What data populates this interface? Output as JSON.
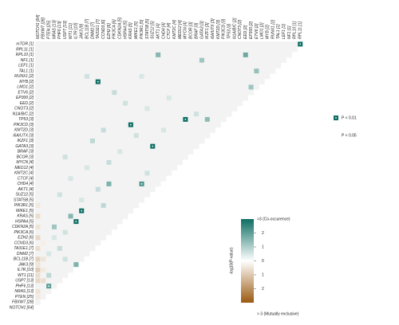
{
  "chart_data": {
    "type": "interaction-triangle",
    "genes": [
      "mTOR [1]",
      "RPL11 [1]",
      "RPL10 [1]",
      "NF1 [1]",
      "LEF1 [1]",
      "TAL1 [1]",
      "RUNX1 [2]",
      "MYB [2]",
      "LMO1 [2]",
      "ETV6 [2]",
      "EP300 [2]",
      "EED [2]",
      "CNOT3 [2]",
      "N1A/B/C [2]",
      "TP53 [3]",
      "PIK3CD [3]",
      "KMT2D [3]",
      "i6A/UTX [3]",
      "IKZF1 [3]",
      "GATA3 [3]",
      "BRAF [3]",
      "BCOR [3]",
      "MYCN [4]",
      "MED12 [4]",
      "KMT2C [4]",
      "CTCF [4]",
      "CHD4 [4]",
      "AKT1 [4]",
      "SUZ12 [5]",
      "STAT5B [5]",
      "PIK3R1 [5]",
      "MIKE1 [5]",
      "KRAS [5]",
      "HSPA4 [5]",
      "CDKN2A [5]",
      "PIK3CA [6]",
      "EZH2 [6]",
      "CCND3 [6]",
      "TA31E1 [7]",
      "DNM2 [7]",
      "BCL11B [7]",
      "JAK3 [9]",
      "IL7R [10]",
      "WT1 [11]",
      "USP7 [13]",
      "PHF6 [13]",
      "NRAS [13]",
      "PTEN [25]",
      "FBXW7 [28]",
      "NOTCH1 [64]"
    ],
    "cells": [
      {
        "genes": [
          0,
          1
        ],
        "value": 3
      },
      {
        "genes": [
          2,
          27
        ],
        "value": 1.5
      },
      {
        "genes": [
          2,
          11
        ],
        "value": 1.8
      },
      {
        "genes": [
          3,
          19
        ],
        "value": 1.2
      },
      {
        "genes": [
          5,
          9
        ],
        "value": 1.3
      },
      {
        "genes": [
          7,
          38
        ],
        "value": 3
      },
      {
        "genes": [
          8,
          10
        ],
        "value": 1.2
      },
      {
        "genes": [
          14,
          22
        ],
        "value": 3
      },
      {
        "genes": [
          14,
          18
        ],
        "value": 1.4
      },
      {
        "genes": [
          15,
          32
        ],
        "value": 3
      },
      {
        "genes": [
          19,
          28
        ],
        "value": 3
      },
      {
        "genes": [
          26,
          36
        ],
        "value": 1.6
      },
      {
        "genes": [
          26,
          30
        ],
        "value": 2.2
      },
      {
        "genes": [
          31,
          41
        ],
        "value": 3
      },
      {
        "genes": [
          33,
          42
        ],
        "value": 3
      },
      {
        "genes": [
          32,
          43
        ],
        "value": 1.5
      },
      {
        "genes": [
          34,
          46
        ],
        "value": 1.2
      },
      {
        "genes": [
          41,
          42
        ],
        "value": 1.6
      },
      {
        "genes": [
          45,
          47
        ],
        "value": 2
      },
      {
        "genes": [
          6,
          40
        ],
        "value": 0.6
      },
      {
        "genes": [
          6,
          30
        ],
        "value": 0.5
      },
      {
        "genes": [
          9,
          35
        ],
        "value": 0.7
      },
      {
        "genes": [
          10,
          25
        ],
        "value": 0.5
      },
      {
        "genes": [
          11,
          33
        ],
        "value": 0.6
      },
      {
        "genes": [
          12,
          29
        ],
        "value": 0.5
      },
      {
        "genes": [
          13,
          20
        ],
        "value": 0.6
      },
      {
        "genes": [
          16,
          37
        ],
        "value": 0.7
      },
      {
        "genes": [
          16,
          26
        ],
        "value": 0.5
      },
      {
        "genes": [
          17,
          31
        ],
        "value": 0.6
      },
      {
        "genes": [
          18,
          39
        ],
        "value": 0.8
      },
      {
        "genes": [
          20,
          34
        ],
        "value": 0.5
      },
      {
        "genes": [
          21,
          44
        ],
        "value": 0.6
      },
      {
        "genes": [
          22,
          36
        ],
        "value": 0.7
      },
      {
        "genes": [
          23,
          40
        ],
        "value": 0.5
      },
      {
        "genes": [
          24,
          29
        ],
        "value": 0.6
      },
      {
        "genes": [
          25,
          43
        ],
        "value": 0.5
      },
      {
        "genes": [
          27,
          38
        ],
        "value": 0.7
      },
      {
        "genes": [
          28,
          45
        ],
        "value": 0.6
      },
      {
        "genes": [
          29,
          41
        ],
        "value": 0.5
      },
      {
        "genes": [
          30,
          37
        ],
        "value": 0.8
      },
      {
        "genes": [
          35,
          44
        ],
        "value": 0.6
      },
      {
        "genes": [
          36,
          46
        ],
        "value": 0.5
      },
      {
        "genes": [
          38,
          45
        ],
        "value": 0.7
      },
      {
        "genes": [
          39,
          47
        ],
        "value": 0.5
      },
      {
        "genes": [
          40,
          44
        ],
        "value": 0.6
      },
      {
        "genes": [
          43,
          47
        ],
        "value": 0.8
      },
      {
        "genes": [
          30,
          49
        ],
        "value": -0.4
      },
      {
        "genes": [
          32,
          49
        ],
        "value": -0.6
      },
      {
        "genes": [
          34,
          49
        ],
        "value": -0.5
      },
      {
        "genes": [
          36,
          49
        ],
        "value": -0.7
      },
      {
        "genes": [
          38,
          49
        ],
        "value": -0.6
      },
      {
        "genes": [
          40,
          49
        ],
        "value": -0.8
      },
      {
        "genes": [
          41,
          49
        ],
        "value": -0.5
      },
      {
        "genes": [
          42,
          49
        ],
        "value": -0.9
      },
      {
        "genes": [
          43,
          49
        ],
        "value": -0.6
      },
      {
        "genes": [
          44,
          49
        ],
        "value": -0.7
      },
      {
        "genes": [
          46,
          49
        ],
        "value": -0.5
      },
      {
        "genes": [
          47,
          49
        ],
        "value": -0.4
      },
      {
        "genes": [
          40,
          48
        ],
        "value": -0.5
      },
      {
        "genes": [
          42,
          48
        ],
        "value": -0.4
      },
      {
        "genes": [
          44,
          48
        ],
        "value": -0.6
      },
      {
        "genes": [
          39,
          47
        ],
        "value": 0.5
      },
      {
        "genes": [
          37,
          48
        ],
        "value": -0.3
      }
    ],
    "significance": [
      "P < 0.01",
      "P < 0.05"
    ],
    "colorbar": {
      "label": "-log10(P-value)",
      "top_label": ">3 (Co-occurence)",
      "bottom_label": "> 3 (Mutually exclusive)",
      "lim": [
        -3,
        3
      ],
      "ticks": [
        2,
        1,
        0,
        {
          "value": -1,
          "label": "1"
        },
        {
          "value": -2,
          "label": "2"
        }
      ],
      "colors": [
        "#9b5a11",
        "#ffffff",
        "#0d6e63"
      ]
    }
  }
}
